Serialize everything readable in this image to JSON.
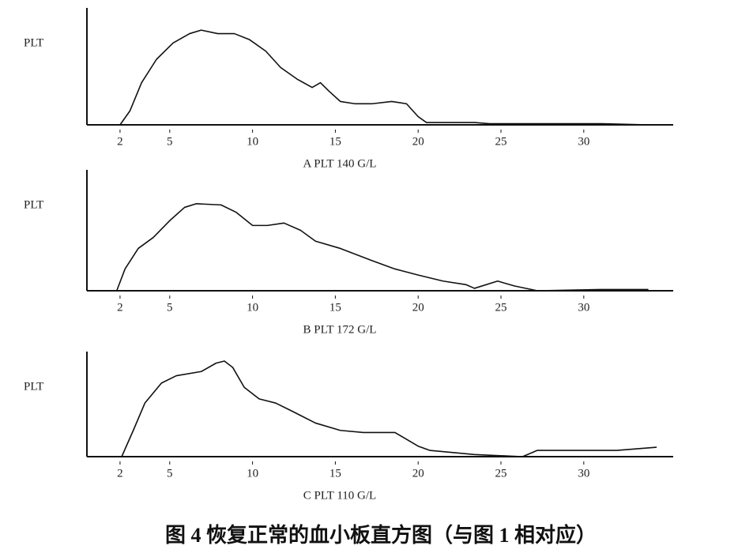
{
  "chart_data": [
    {
      "type": "line",
      "ylabel": "PLT",
      "xlabel": "A  PLT 140 G/L",
      "x": [
        2,
        2.6,
        3.3,
        4.2,
        5.2,
        6.2,
        6.9,
        7.9,
        8.9,
        9.8,
        10.8,
        11.7,
        12.7,
        13.6,
        14.1,
        14.6,
        15.3,
        16.2,
        17.2,
        18.4,
        19.3,
        20,
        20.5,
        23.4,
        24.3,
        28.1,
        31,
        33.9
      ],
      "values": [
        0,
        12,
        36,
        56,
        70,
        78,
        81,
        78,
        78,
        73,
        63,
        49,
        39,
        32,
        36,
        29,
        20,
        18,
        18,
        20,
        18,
        7,
        2,
        2,
        1,
        1,
        1,
        0
      ],
      "xlim": [
        0,
        35.4
      ],
      "ylim": [
        0,
        100
      ],
      "xticks": [
        2,
        5,
        10,
        15,
        20,
        25,
        30
      ],
      "color": "#111"
    },
    {
      "type": "line",
      "ylabel": "PLT",
      "xlabel": "B  PLT 172 G/L",
      "x": [
        1.8,
        2.3,
        3.1,
        4,
        5,
        5.9,
        6.6,
        8.1,
        9,
        10,
        10.9,
        11.9,
        12.9,
        13.8,
        15.3,
        17.2,
        18.6,
        20,
        21.5,
        22.9,
        23.4,
        24.8,
        25.8,
        27.2,
        31,
        33.9
      ],
      "values": [
        0,
        18,
        35,
        44,
        58,
        69,
        72,
        71,
        65,
        54,
        54,
        56,
        50,
        41,
        35,
        25,
        18,
        13,
        8,
        5,
        2,
        8,
        4,
        0,
        1,
        1
      ],
      "xlim": [
        0,
        35.4
      ],
      "ylim": [
        0,
        100
      ],
      "xticks": [
        2,
        5,
        10,
        15,
        20,
        25,
        30
      ],
      "color": "#111"
    },
    {
      "type": "line",
      "ylabel": "PLT",
      "xlabel": "C  PLT 110 G/L",
      "x": [
        2.1,
        2.8,
        3.5,
        4.5,
        5.4,
        6.9,
        7.8,
        8.3,
        8.8,
        9.5,
        10.4,
        11.4,
        12.3,
        13.8,
        15.3,
        16.7,
        18.6,
        20,
        20.7,
        23.4,
        26.3,
        27.2,
        29.1,
        32,
        34.4
      ],
      "values": [
        0,
        25,
        51,
        70,
        77,
        81,
        89,
        91,
        85,
        66,
        55,
        51,
        44,
        32,
        25,
        23,
        23,
        10,
        6,
        2,
        0,
        6,
        6,
        6,
        9
      ],
      "xlim": [
        0,
        35.4
      ],
      "ylim": [
        0,
        100
      ],
      "xticks": [
        2,
        5,
        10,
        15,
        20,
        25,
        30
      ],
      "color": "#111"
    }
  ],
  "caption": "图 4  恢复正常的血小板直方图（与图 1 相对应）"
}
